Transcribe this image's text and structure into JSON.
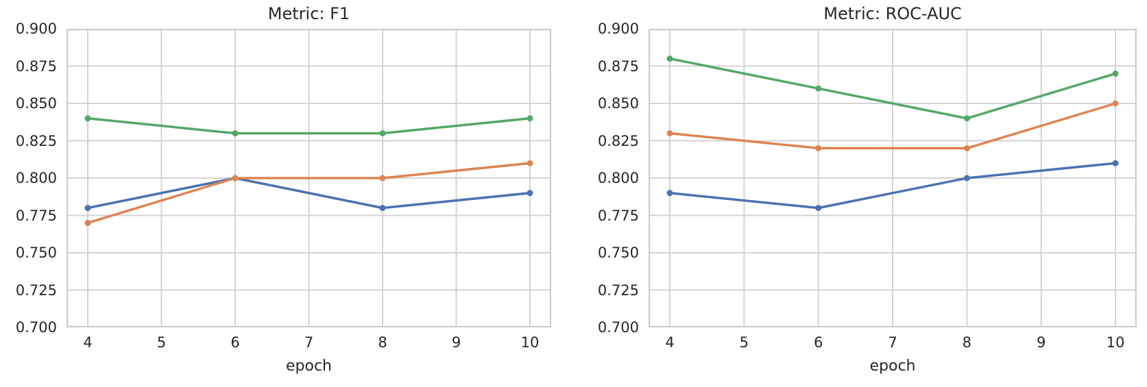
{
  "figure": {
    "background": "#ffffff",
    "grid_color": "#d3d3d3",
    "spine_color": "#cccccc",
    "text_color": "#262626"
  },
  "chart_data": [
    {
      "type": "line",
      "title": "Metric: F1",
      "xlabel": "epoch",
      "ylabel": "",
      "x": [
        4,
        6,
        8,
        10
      ],
      "xticks": [
        4,
        5,
        6,
        7,
        8,
        9,
        10
      ],
      "yticks": [
        "0.700",
        "0.725",
        "0.750",
        "0.775",
        "0.800",
        "0.825",
        "0.850",
        "0.875",
        "0.900"
      ],
      "ylim": [
        0.7,
        0.9
      ],
      "grid": true,
      "legend": "none",
      "series": [
        {
          "name": "series-blue",
          "color": "#4C72B0",
          "values": [
            0.78,
            0.8,
            0.78,
            0.79
          ]
        },
        {
          "name": "series-orange",
          "color": "#DD8452",
          "values": [
            0.77,
            0.8,
            0.8,
            0.81
          ]
        },
        {
          "name": "series-green",
          "color": "#55A868",
          "values": [
            0.84,
            0.83,
            0.83,
            0.84
          ]
        }
      ]
    },
    {
      "type": "line",
      "title": "Metric: ROC-AUC",
      "xlabel": "epoch",
      "ylabel": "",
      "x": [
        4,
        6,
        8,
        10
      ],
      "xticks": [
        4,
        5,
        6,
        7,
        8,
        9,
        10
      ],
      "yticks": [
        "0.700",
        "0.725",
        "0.750",
        "0.775",
        "0.800",
        "0.825",
        "0.850",
        "0.875",
        "0.900"
      ],
      "ylim": [
        0.7,
        0.9
      ],
      "grid": true,
      "legend": "none",
      "series": [
        {
          "name": "series-blue",
          "color": "#4C72B0",
          "values": [
            0.79,
            0.78,
            0.8,
            0.81
          ]
        },
        {
          "name": "series-orange",
          "color": "#DD8452",
          "values": [
            0.83,
            0.82,
            0.82,
            0.85
          ]
        },
        {
          "name": "series-green",
          "color": "#55A868",
          "values": [
            0.88,
            0.86,
            0.84,
            0.87
          ]
        }
      ]
    }
  ]
}
